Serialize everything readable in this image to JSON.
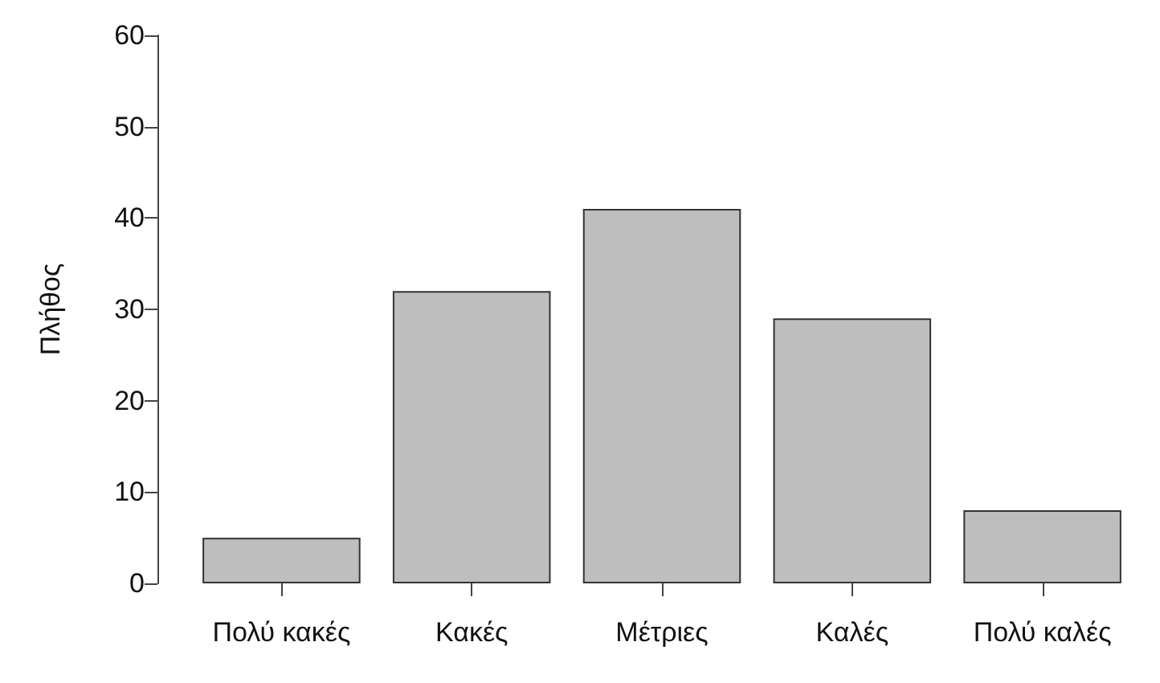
{
  "chart_data": {
    "type": "bar",
    "ylabel": "Πλήθος",
    "categories": [
      "Πολύ κακές",
      "Κακές",
      "Μέτριες",
      "Καλές",
      "Πολύ καλές"
    ],
    "values": [
      5,
      32,
      41,
      29,
      8
    ],
    "color": "#bebebe",
    "ylim": [
      0,
      60
    ],
    "yticks": [
      0,
      10,
      20,
      30,
      40,
      50,
      60
    ],
    "grid": false
  }
}
